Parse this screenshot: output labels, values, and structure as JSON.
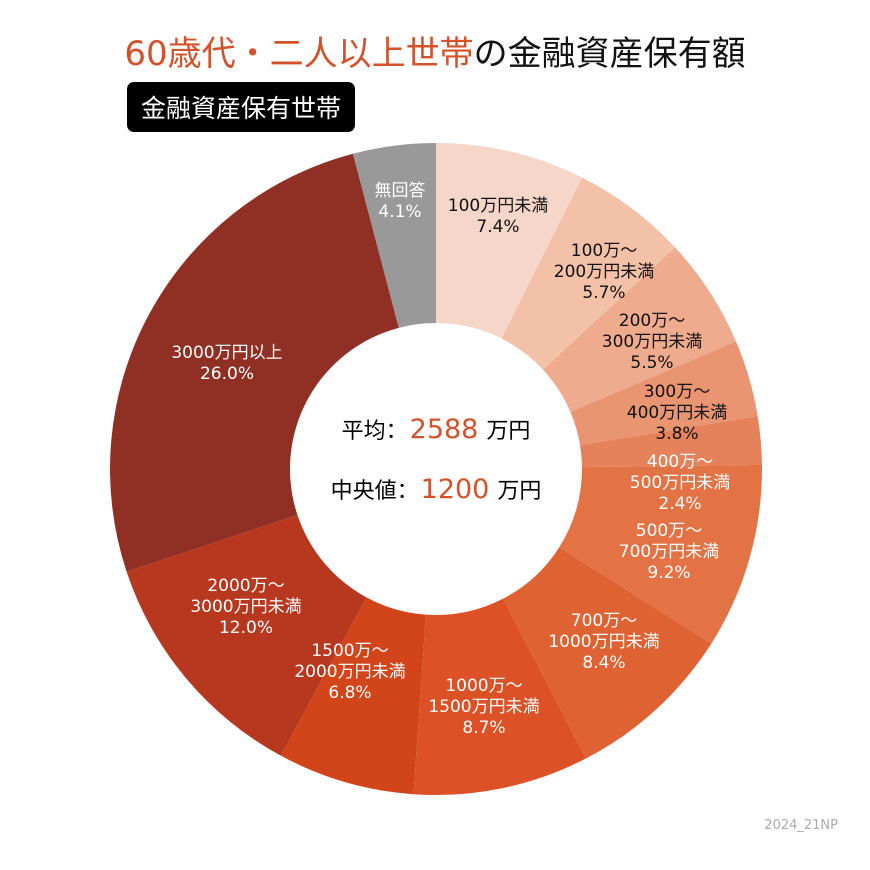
{
  "title": {
    "highlight": "60歳代・二人以上世帯",
    "rest": "の金融資産保有額"
  },
  "subtitle": "金融資産保有世帯",
  "center": {
    "mean_label": "平均：",
    "mean_value": "2588",
    "mean_unit": "万円",
    "median_label": "中央値：",
    "median_value": "1200",
    "median_unit": "万円"
  },
  "footer": "2024_21NP",
  "chart_data": {
    "type": "pie",
    "donut": true,
    "start": "top, clockwise",
    "slices": [
      {
        "label": [
          "100万円未満"
        ],
        "value": 7.4,
        "pct": "7.4%",
        "color": "#f5d6c9"
      },
      {
        "label": [
          "100万〜",
          "200万円未満"
        ],
        "value": 5.7,
        "pct": "5.7%",
        "color": "#f3c0a8"
      },
      {
        "label": [
          "200万〜",
          "300万円未満"
        ],
        "value": 5.5,
        "pct": "5.5%",
        "color": "#eeab8d"
      },
      {
        "label": [
          "300万〜",
          "400万円未満"
        ],
        "value": 3.8,
        "pct": "3.8%",
        "color": "#ea9572"
      },
      {
        "label": [
          "400万〜",
          "500万円未満"
        ],
        "value": 2.4,
        "pct": "2.4%",
        "color": "#e6825b"
      },
      {
        "label": [
          "500万〜",
          "700万円未満"
        ],
        "value": 9.2,
        "pct": "9.2%",
        "color": "#e37245"
      },
      {
        "label": [
          "700万〜",
          "1000万円未満"
        ],
        "value": 8.4,
        "pct": "8.4%",
        "color": "#df6233"
      },
      {
        "label": [
          "1000万〜",
          "1500万円未満"
        ],
        "value": 8.7,
        "pct": "8.7%",
        "color": "#dc5125"
      },
      {
        "label": [
          "1500万〜",
          "2000万円未満"
        ],
        "value": 6.8,
        "pct": "6.8%",
        "color": "#d2441a"
      },
      {
        "label": [
          "2000万〜",
          "3000万円未満"
        ],
        "value": 12.0,
        "pct": "12.0%",
        "color": "#b8371f"
      },
      {
        "label": [
          "3000万円以上"
        ],
        "value": 26.0,
        "pct": "26.0%",
        "color": "#902f23"
      },
      {
        "label": [
          "無回答"
        ],
        "value": 4.1,
        "pct": "4.1%",
        "color": "#999999"
      }
    ]
  }
}
